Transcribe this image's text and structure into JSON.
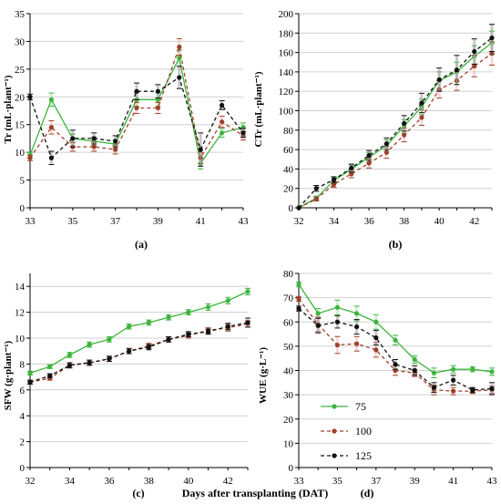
{
  "colors": {
    "75": "#3cb43c",
    "100": "#a0402a",
    "125": "#111111",
    "grid": "#d0d0d0"
  },
  "shared_xlabel": "Days after transplanting (DAT)",
  "legend": [
    {
      "name": "75",
      "color": "#3cb43c",
      "dash": ""
    },
    {
      "name": "100",
      "color": "#a0402a",
      "dash": "4 3"
    },
    {
      "name": "125",
      "color": "#111111",
      "dash": "4 3"
    }
  ],
  "chart_data": [
    {
      "type": "line",
      "panel_label": "(a)",
      "ylabel": "Tr (mL·plant⁻¹)",
      "xlim": [
        33,
        43
      ],
      "xticks": [
        33,
        35,
        37,
        39,
        41,
        43
      ],
      "ylim": [
        0,
        35
      ],
      "yticks": [
        0,
        5,
        10,
        15,
        20,
        25,
        30,
        35
      ],
      "x": [
        33,
        34,
        35,
        36,
        37,
        38,
        39,
        40,
        41,
        42,
        43
      ],
      "series": [
        {
          "name": "75",
          "values": [
            9.5,
            19.5,
            12.5,
            12.0,
            11.5,
            19.5,
            19.5,
            27.0,
            8.0,
            13.5,
            14.5
          ],
          "err": [
            0.5,
            1.2,
            0.8,
            0.8,
            0.8,
            1.2,
            1.2,
            1.5,
            1.0,
            0.8,
            0.8
          ]
        },
        {
          "name": "100",
          "values": [
            9.0,
            14.5,
            11.0,
            11.0,
            10.5,
            18.0,
            18.0,
            29.0,
            9.0,
            15.5,
            13.0
          ],
          "err": [
            0.5,
            1.2,
            0.8,
            0.8,
            0.8,
            1.0,
            1.0,
            1.5,
            1.0,
            1.0,
            0.8
          ]
        },
        {
          "name": "125",
          "values": [
            20.0,
            9.0,
            12.5,
            12.5,
            12.0,
            21.0,
            21.0,
            23.5,
            10.5,
            18.5,
            13.5
          ],
          "err": [
            0.5,
            1.2,
            1.5,
            1.0,
            1.0,
            1.5,
            1.2,
            2.0,
            3.0,
            0.8,
            0.8
          ]
        }
      ]
    },
    {
      "type": "line",
      "panel_label": "(b)",
      "ylabel": "CTr (mL·plant⁻¹)",
      "xlim": [
        32,
        43
      ],
      "xticks": [
        32,
        34,
        36,
        38,
        40,
        42
      ],
      "ylim": [
        0,
        200
      ],
      "yticks": [
        0,
        20,
        40,
        60,
        80,
        100,
        120,
        140,
        160,
        180,
        200
      ],
      "x": [
        32,
        33,
        34,
        35,
        36,
        37,
        38,
        39,
        40,
        41,
        42,
        43
      ],
      "series": [
        {
          "name": "75",
          "values": [
            0,
            10,
            28,
            40,
            52,
            64,
            84,
            104,
            131,
            140,
            156,
            170
          ],
          "err": [
            0,
            2,
            3,
            4,
            5,
            6,
            7,
            8,
            9,
            10,
            11,
            12
          ]
        },
        {
          "name": "100",
          "values": [
            0,
            9,
            24,
            35,
            46,
            57,
            75,
            93,
            122,
            131,
            146,
            159
          ],
          "err": [
            0,
            2,
            3,
            4,
            5,
            6,
            7,
            8,
            9,
            10,
            11,
            12
          ]
        },
        {
          "name": "125",
          "values": [
            0,
            20,
            29,
            41,
            54,
            66,
            87,
            108,
            132,
            142,
            161,
            175
          ],
          "err": [
            0,
            3,
            3,
            4,
            5,
            6,
            8,
            10,
            12,
            15,
            13,
            14
          ]
        }
      ]
    },
    {
      "type": "line",
      "panel_label": "(c)",
      "ylabel": "SFW (g·plant⁻¹)",
      "xlim": [
        32,
        43
      ],
      "xticks": [
        32,
        34,
        36,
        38,
        40,
        42
      ],
      "ylim": [
        0,
        15
      ],
      "yticks": [
        0,
        2,
        4,
        6,
        8,
        10,
        12,
        14
      ],
      "x": [
        32,
        33,
        34,
        35,
        36,
        37,
        38,
        39,
        40,
        41,
        42,
        43
      ],
      "series": [
        {
          "name": "75",
          "values": [
            7.3,
            7.8,
            8.7,
            9.5,
            9.9,
            10.9,
            11.2,
            11.6,
            12.0,
            12.4,
            12.9,
            13.6
          ],
          "err": [
            0.15,
            0.15,
            0.2,
            0.2,
            0.2,
            0.2,
            0.2,
            0.2,
            0.2,
            0.25,
            0.25,
            0.25
          ]
        },
        {
          "name": "100",
          "values": [
            6.6,
            6.9,
            7.9,
            8.1,
            8.4,
            9.0,
            9.4,
            9.9,
            10.2,
            10.6,
            10.8,
            11.1
          ],
          "err": [
            0.15,
            0.15,
            0.2,
            0.2,
            0.2,
            0.2,
            0.2,
            0.2,
            0.2,
            0.2,
            0.25,
            0.25
          ]
        },
        {
          "name": "125",
          "values": [
            6.6,
            7.1,
            7.9,
            8.1,
            8.4,
            9.0,
            9.3,
            9.9,
            10.3,
            10.5,
            10.9,
            11.2
          ],
          "err": [
            0.15,
            0.15,
            0.2,
            0.2,
            0.2,
            0.2,
            0.2,
            0.2,
            0.2,
            0.2,
            0.25,
            0.35
          ]
        }
      ]
    },
    {
      "type": "line",
      "panel_label": "(d)",
      "ylabel": "WUE (g·L⁻¹)",
      "xlim": [
        33,
        43
      ],
      "xticks": [
        33,
        35,
        37,
        39,
        41,
        43
      ],
      "ylim": [
        0,
        80
      ],
      "yticks": [
        0,
        10,
        20,
        30,
        40,
        50,
        60,
        70,
        80
      ],
      "x": [
        33,
        34,
        35,
        36,
        37,
        38,
        39,
        40,
        41,
        42,
        43
      ],
      "series": [
        {
          "name": "75",
          "values": [
            75.5,
            63.5,
            66.0,
            63.5,
            60.0,
            52.5,
            44.5,
            39.0,
            40.5,
            40.5,
            39.5
          ],
          "err": [
            1.0,
            2.0,
            3.0,
            3.0,
            3.0,
            2.0,
            1.5,
            2.0,
            1.5,
            1.0,
            1.5
          ]
        },
        {
          "name": "100",
          "values": [
            69.5,
            59.0,
            50.5,
            51.0,
            48.5,
            40.0,
            39.0,
            32.0,
            31.5,
            31.5,
            32.0
          ],
          "err": [
            1.0,
            3.0,
            3.5,
            3.0,
            3.0,
            2.0,
            1.5,
            2.0,
            1.5,
            1.0,
            1.5
          ]
        },
        {
          "name": "125",
          "values": [
            65.5,
            58.5,
            60.0,
            58.0,
            53.5,
            42.5,
            40.0,
            33.0,
            36.0,
            32.0,
            32.5
          ],
          "err": [
            1.0,
            3.0,
            2.5,
            3.0,
            3.0,
            2.0,
            2.0,
            2.0,
            2.0,
            1.0,
            2.5
          ]
        }
      ]
    }
  ]
}
